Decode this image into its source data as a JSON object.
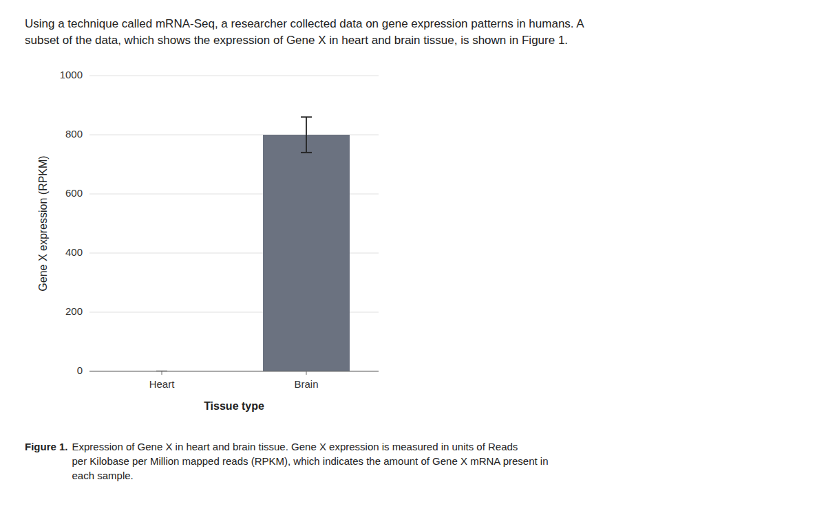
{
  "chart_data": {
    "type": "bar",
    "title": "Using a technique called mRNA-Seq, a researcher collected data on gene expression patterns in humans. A\nsubset of the data, which shows the expression of Gene X in heart and brain tissue, is shown in Figure 1.",
    "annotations": [
      "Figure 1.",
      "Expression of Gene X in heart and brain tissue. Gene X expression is measured in units of Reads\nper Kilobase per Million mapped reads (RPKM), which indicates the amount of Gene X mRNA present in\neach sample."
    ],
    "categories": [
      "Heart",
      "Brain"
    ],
    "values": [
      0,
      800
    ],
    "errors": [
      0,
      60
    ],
    "color": "#6b7280",
    "xlabel": "Tissue type",
    "ylabel": "Gene X expression (RPKM)",
    "ylim": [
      0,
      1000
    ],
    "yticks": [
      0,
      200,
      400,
      600,
      800,
      1000
    ],
    "grid": true
  }
}
